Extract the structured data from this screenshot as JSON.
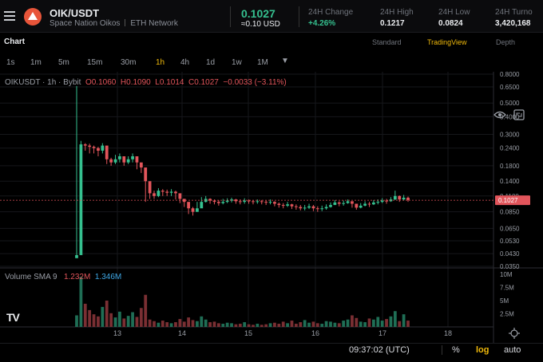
{
  "header": {
    "pair": "OIK/USDT",
    "name": "Space Nation Oikos",
    "network": "ETH Network",
    "last_price": "0.1027",
    "last_usd": "≈0.10 USD",
    "stats": [
      {
        "label": "24H Change",
        "value": "+4.26%",
        "color": "#35c08f"
      },
      {
        "label": "24H High",
        "value": "0.1217",
        "color": "#eaecef"
      },
      {
        "label": "24H Low",
        "value": "0.0824",
        "color": "#eaecef"
      },
      {
        "label": "24H Turno",
        "value": "3,420,168",
        "color": "#eaecef"
      }
    ]
  },
  "chart_header": {
    "title": "Chart",
    "views": [
      "Standard",
      "TradingView",
      "Depth"
    ],
    "active_view": "TradingView"
  },
  "toolbar": {
    "timeframes": [
      "1s",
      "1m",
      "5m",
      "15m",
      "30m",
      "1h",
      "4h",
      "1d",
      "1w",
      "1M"
    ],
    "active": "1h",
    "icons": [
      "dropdown-caret-icon",
      "indicators-icon",
      "templates-icon",
      "chart-type-icon",
      "add-icon",
      "camera-icon",
      "eye-icon",
      "fullscreen-icon"
    ]
  },
  "legend": {
    "symbol": "OIKUSDT · 1h · Bybit",
    "o_label": "O",
    "o": "0.1060",
    "h_label": "H",
    "h": "0.1090",
    "l_label": "L",
    "l": "0.1014",
    "c_label": "C",
    "c": "0.1027",
    "change": "−0.0033 (−3.11%)"
  },
  "volume_legend": {
    "label": "Volume SMA 9",
    "v1": "1.232M",
    "v2": "1.346M"
  },
  "watermark": "TV",
  "price_axis": {
    "ticks": [
      "0.8000",
      "0.6500",
      "0.5000",
      "0.4000",
      "0.3000",
      "0.2400",
      "0.1800",
      "0.1400",
      "0.1100",
      "0.0850",
      "0.0650",
      "0.0530",
      "0.0430",
      "0.0350"
    ],
    "current": "0.1027"
  },
  "volume_axis": {
    "ticks": [
      "10M",
      "7.5M",
      "5M",
      "2.5M"
    ]
  },
  "time_axis": {
    "ticks": [
      "13",
      "14",
      "15",
      "16",
      "17",
      "18"
    ]
  },
  "bottom": {
    "time": "09:37:02 (UTC)",
    "percent": "%",
    "log": "log",
    "auto": "auto"
  },
  "colors": {
    "up": "#35c08f",
    "down": "#e2555b",
    "accent": "#f0b90b",
    "price_tag": "#e2555b"
  },
  "chart_data": {
    "type": "candlestick",
    "yscale": "log",
    "ylim": [
      0.035,
      0.8
    ],
    "x_labels": [
      "13",
      "14",
      "15",
      "16",
      "17",
      "18"
    ],
    "price_ohlc_series": {
      "name": "OIKUSDT",
      "close": [
        0.042,
        0.255,
        0.25,
        0.245,
        0.24,
        0.23,
        0.25,
        0.2,
        0.19,
        0.2,
        0.21,
        0.19,
        0.2,
        0.21,
        0.19,
        0.175,
        0.14,
        0.115,
        0.11,
        0.12,
        0.118,
        0.116,
        0.118,
        0.115,
        0.105,
        0.1,
        0.09,
        0.085,
        0.09,
        0.1,
        0.105,
        0.102,
        0.1,
        0.098,
        0.1,
        0.102,
        0.104,
        0.101,
        0.1,
        0.102,
        0.101,
        0.1,
        0.101,
        0.1,
        0.099,
        0.1,
        0.097,
        0.095,
        0.094,
        0.096,
        0.093,
        0.092,
        0.09,
        0.091,
        0.093,
        0.09,
        0.089,
        0.09,
        0.092,
        0.095,
        0.099,
        0.097,
        0.098,
        0.101,
        0.097,
        0.091,
        0.094,
        0.097,
        0.096,
        0.099,
        0.1,
        0.102,
        0.101,
        0.104,
        0.11,
        0.104,
        0.107,
        0.103
      ],
      "high": [
        0.66,
        0.27,
        0.26,
        0.258,
        0.25,
        0.245,
        0.26,
        0.21,
        0.205,
        0.215,
        0.22,
        0.205,
        0.21,
        0.22,
        0.2,
        0.185,
        0.15,
        0.125,
        0.12,
        0.125,
        0.123,
        0.122,
        0.123,
        0.12,
        0.11,
        0.105,
        0.097,
        0.092,
        0.1,
        0.108,
        0.11,
        0.106,
        0.104,
        0.103,
        0.105,
        0.106,
        0.107,
        0.105,
        0.104,
        0.106,
        0.104,
        0.103,
        0.104,
        0.103,
        0.102,
        0.104,
        0.101,
        0.099,
        0.098,
        0.1,
        0.097,
        0.096,
        0.095,
        0.095,
        0.097,
        0.095,
        0.093,
        0.094,
        0.096,
        0.099,
        0.103,
        0.101,
        0.102,
        0.104,
        0.101,
        0.097,
        0.098,
        0.101,
        0.1,
        0.103,
        0.104,
        0.106,
        0.105,
        0.108,
        0.12,
        0.111,
        0.112,
        0.109
      ],
      "low": [
        0.04,
        0.09,
        0.23,
        0.22,
        0.22,
        0.21,
        0.22,
        0.185,
        0.18,
        0.185,
        0.19,
        0.18,
        0.185,
        0.19,
        0.17,
        0.16,
        0.1,
        0.105,
        0.105,
        0.108,
        0.11,
        0.11,
        0.11,
        0.104,
        0.098,
        0.092,
        0.082,
        0.08,
        0.085,
        0.095,
        0.099,
        0.097,
        0.096,
        0.094,
        0.096,
        0.098,
        0.099,
        0.097,
        0.096,
        0.097,
        0.097,
        0.096,
        0.097,
        0.096,
        0.095,
        0.096,
        0.093,
        0.091,
        0.09,
        0.092,
        0.089,
        0.088,
        0.087,
        0.087,
        0.089,
        0.086,
        0.085,
        0.086,
        0.088,
        0.091,
        0.095,
        0.093,
        0.094,
        0.097,
        0.091,
        0.088,
        0.09,
        0.093,
        0.092,
        0.095,
        0.096,
        0.098,
        0.097,
        0.1,
        0.103,
        0.1,
        0.102,
        0.1
      ]
    },
    "volume": [
      2.2,
      9.5,
      4.4,
      3.2,
      2.4,
      2.0,
      3.8,
      5.0,
      2.6,
      1.8,
      2.9,
      1.6,
      2.1,
      2.8,
      1.9,
      3.6,
      6.1,
      1.4,
      1.1,
      0.8,
      1.2,
      0.9,
      0.7,
      0.9,
      1.5,
      1.0,
      1.8,
      1.3,
      1.1,
      2.0,
      1.4,
      0.9,
      1.0,
      0.7,
      0.6,
      0.8,
      0.7,
      0.5,
      0.6,
      0.9,
      0.5,
      0.4,
      0.6,
      0.4,
      0.5,
      0.7,
      0.8,
      0.6,
      1.0,
      0.7,
      1.2,
      0.6,
      0.9,
      1.3,
      0.8,
      1.0,
      0.7,
      0.6,
      1.1,
      1.0,
      0.8,
      0.7,
      1.2,
      1.4,
      2.2,
      1.7,
      1.0,
      0.9,
      1.6,
      1.4,
      1.9,
      1.2,
      1.5,
      2.0,
      3.0,
      1.1,
      2.4,
      1.2
    ],
    "volume_unit": "M",
    "volume_ylim": [
      0,
      10
    ]
  }
}
